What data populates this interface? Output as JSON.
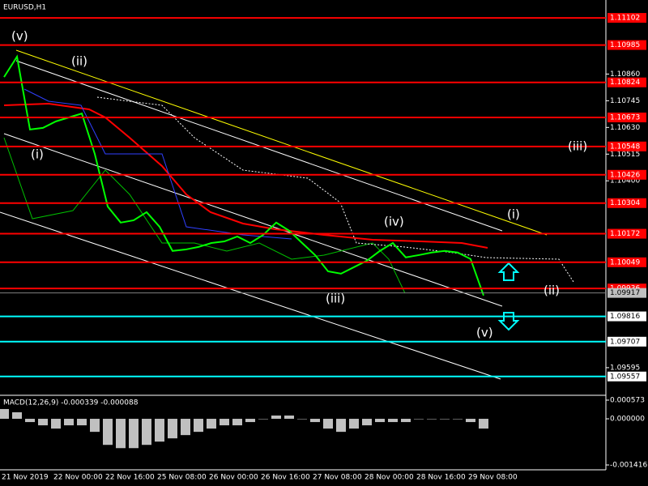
{
  "chart_data": [
    {
      "type": "line",
      "title": "EURUSD,H1",
      "categories": [
        "21 Nov 2019",
        null,
        null,
        null,
        "22 Nov 00:00",
        null,
        null,
        null,
        "22 Nov 16:00",
        null,
        null,
        null,
        "25 Nov 08:00",
        null,
        null,
        null,
        "26 Nov 00:00",
        null,
        null,
        null,
        "26 Nov 16:00",
        null,
        null,
        null,
        "27 Nov 08:00",
        null,
        null,
        null,
        "28 Nov 00:00",
        null,
        null,
        null,
        "28 Nov 16:00",
        null,
        null,
        null,
        "29 Nov 08:00",
        null
      ],
      "values": [
        1.10847,
        1.10935,
        1.10621,
        1.10628,
        1.10656,
        1.10673,
        1.1069,
        1.10516,
        1.10289,
        1.1022,
        1.1023,
        1.10265,
        1.10202,
        1.10098,
        1.10104,
        1.10115,
        1.10132,
        1.10139,
        1.1016,
        1.10132,
        1.10167,
        1.1022,
        1.10185,
        1.10132,
        1.1008,
        1.1001,
        1.1,
        1.10028,
        1.10056,
        1.10098,
        1.10132,
        1.1007,
        1.1008,
        1.10091,
        1.10098,
        1.10091,
        1.10063,
        1.09906
      ],
      "color": "#00ff00",
      "ylim": [
        1.09476,
        1.11179
      ],
      "yticks": [
        {
          "value": 1.1086,
          "label": "1.10860"
        },
        1.10745,
        {
          "value": 1.1063,
          "label": "1.10630"
        },
        1.10515,
        {
          "value": 1.104,
          "label": "1.10400"
        },
        1.09595
      ],
      "levels": [
        {
          "value": 1.11102,
          "color": "#ff0000"
        },
        {
          "value": 1.10985,
          "color": "#ff0000"
        },
        {
          "value": 1.10824,
          "color": "#ff0000"
        },
        {
          "value": 1.10673,
          "color": "#ff0000"
        },
        {
          "value": 1.10548,
          "color": "#ff0000"
        },
        {
          "value": 1.10426,
          "color": "#ff0000"
        },
        {
          "value": 1.10304,
          "color": "#ff0000"
        },
        {
          "value": 1.10172,
          "color": "#ff0000"
        },
        {
          "value": 1.10049,
          "color": "#ff0000"
        },
        {
          "value": 1.09936,
          "color": "#ff0000"
        },
        {
          "value": 1.09816,
          "color": "#00ffff"
        },
        {
          "value": 1.09707,
          "color": "#00ffff"
        },
        {
          "value": 1.09557,
          "color": "#00ffff"
        }
      ],
      "current_price": 1.09917,
      "annotations": [
        "(v)",
        "(ii)",
        "(i)",
        "(iii)",
        "(iv)",
        "(v)",
        "(i)",
        "(ii)",
        "(iii)"
      ]
    },
    {
      "type": "bar",
      "title": "MACD(12,26,9) -0.000339 -0.000088",
      "values": [
        0.0003,
        0.0002,
        -0.0001,
        -0.0002,
        -0.0003,
        -0.0002,
        -0.0002,
        -0.0004,
        -0.0008,
        -0.0009,
        -0.0009,
        -0.0008,
        -0.0007,
        -0.0006,
        -0.0005,
        -0.0004,
        -0.0003,
        -0.0002,
        -0.0002,
        -0.0001,
        0,
        0.0001,
        0.0001,
        0,
        -0.0001,
        -0.0003,
        -0.0004,
        -0.0003,
        -0.0002,
        -0.0001,
        -0.0001,
        -0.0001,
        0,
        0,
        0,
        0,
        -0.0001,
        -0.0003
      ],
      "color": "#c0c0c0",
      "ylim": [
        -0.001515,
        0.000672
      ],
      "yticks": [
        0.000573,
        {
          "value": 0,
          "label": "0.000000"
        },
        -0.001416
      ]
    }
  ]
}
